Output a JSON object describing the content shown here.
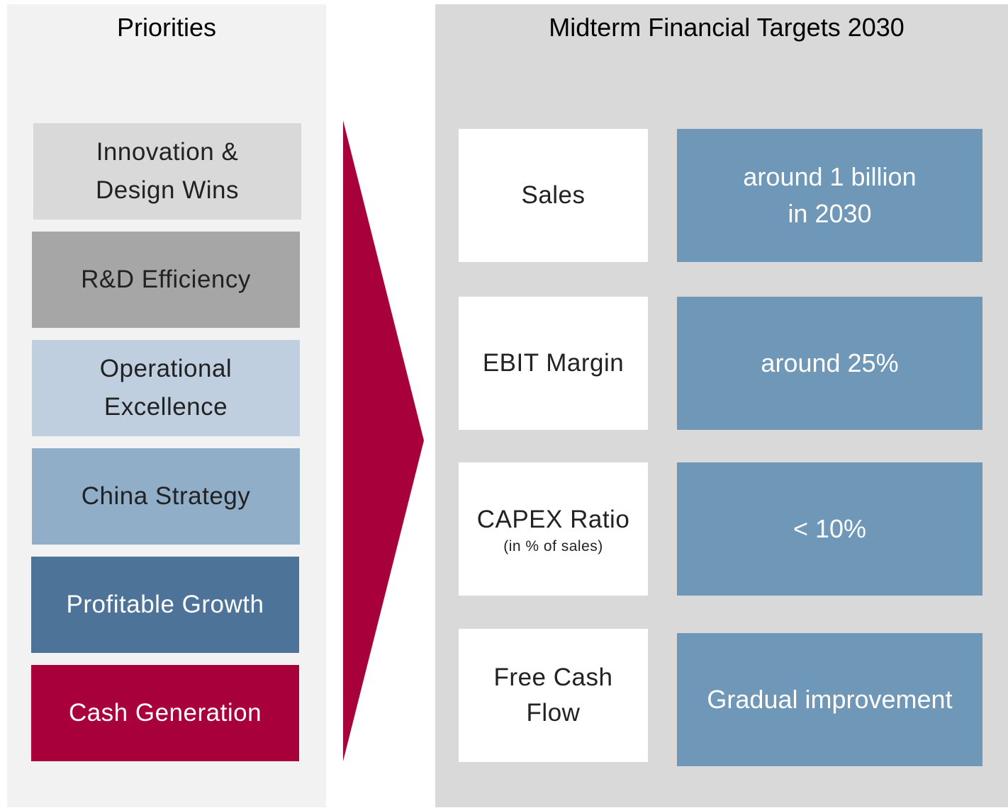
{
  "priorities": {
    "title": "Priorities",
    "items": [
      {
        "lines": [
          "Innovation &",
          "Design Wins"
        ]
      },
      {
        "lines": [
          "R&D Efficiency"
        ]
      },
      {
        "lines": [
          "Operational",
          "Excellence"
        ]
      },
      {
        "lines": [
          "China Strategy"
        ]
      },
      {
        "lines": [
          "Profitable Growth"
        ]
      },
      {
        "lines": [
          "Cash Generation"
        ]
      }
    ]
  },
  "targets": {
    "title": "Midterm Financial Targets 2030",
    "rows": [
      {
        "label": [
          "Sales"
        ],
        "value": [
          "around 1 billion",
          "in 2030"
        ]
      },
      {
        "label": [
          "EBIT Margin"
        ],
        "value": [
          "around 25%"
        ]
      },
      {
        "label": [
          "CAPEX Ratio"
        ],
        "note": "(in % of sales)",
        "value": [
          "< 10%"
        ]
      },
      {
        "label": [
          "Free Cash",
          "Flow"
        ],
        "value": [
          "Gradual improvement"
        ]
      }
    ]
  }
}
